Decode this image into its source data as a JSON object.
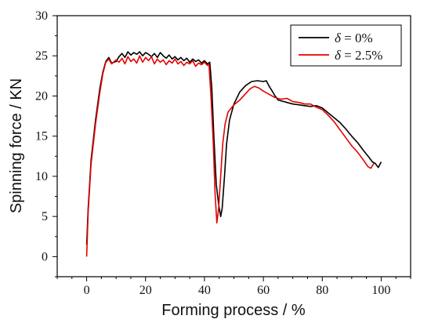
{
  "chart_data": {
    "type": "line",
    "xlabel": "Forming process / %",
    "ylabel": "Spinning force / KN",
    "xlim": [
      -10,
      110
    ],
    "ylim": [
      -2.5,
      30
    ],
    "xticks": [
      0,
      20,
      40,
      60,
      80,
      100
    ],
    "yticks": [
      0,
      5,
      10,
      15,
      20,
      25,
      30
    ],
    "legend_position": "top-right",
    "grid": false,
    "series": [
      {
        "name_symbol": "δ",
        "name_value": " = 0%",
        "color": "#000000",
        "x": [
          0,
          0.5,
          1.5,
          3,
          4.5,
          5.5,
          6.5,
          7.5,
          8.5,
          10,
          11,
          12,
          13,
          14,
          15,
          16,
          17,
          18,
          19,
          20,
          21,
          22,
          23,
          24,
          25,
          26,
          27,
          28,
          29,
          30,
          31,
          32,
          33,
          34,
          35,
          36,
          37,
          38,
          39,
          40,
          41,
          41.8,
          42.5,
          43.2,
          44,
          44.8,
          45.5,
          46,
          46.8,
          47.5,
          48.5,
          50,
          52,
          54,
          56,
          58,
          60,
          61,
          62,
          63,
          64,
          65,
          66,
          68,
          70,
          72,
          74,
          76,
          78,
          80,
          82,
          84,
          86,
          88,
          90,
          92,
          94,
          96,
          97,
          98,
          99,
          100
        ],
        "y": [
          1.5,
          6,
          12,
          17,
          21,
          23,
          24.3,
          24.8,
          24.1,
          24.3,
          24.9,
          25.3,
          24.8,
          25.5,
          25.1,
          25.4,
          25.2,
          25.5,
          25.0,
          25.4,
          25.2,
          24.9,
          25.3,
          24.8,
          25.4,
          25.0,
          24.7,
          25.1,
          24.6,
          24.9,
          24.5,
          24.8,
          24.4,
          24.7,
          24.2,
          24.6,
          24.3,
          24.5,
          24.1,
          24.4,
          24.0,
          24.2,
          21,
          15,
          9,
          6.5,
          5.0,
          6,
          10,
          14,
          17,
          19,
          20.5,
          21.3,
          21.8,
          21.9,
          21.8,
          21.9,
          21.2,
          20.6,
          20.0,
          19.5,
          19.4,
          19.2,
          19.0,
          18.9,
          18.8,
          18.7,
          18.8,
          18.5,
          17.9,
          17.3,
          16.7,
          15.9,
          15.0,
          14.2,
          13.2,
          12.3,
          11.8,
          11.6,
          11.1,
          11.8
        ]
      },
      {
        "name_symbol": "δ",
        "name_value": " = 2.5%",
        "color": "#e60000",
        "x": [
          0,
          0.5,
          1.5,
          3,
          4.5,
          5.5,
          6.5,
          7.5,
          8.5,
          10,
          11,
          12,
          13,
          14,
          15,
          16,
          17,
          18,
          19,
          20,
          21,
          22,
          23,
          24,
          25,
          26,
          27,
          28,
          29,
          30,
          31,
          32,
          33,
          34,
          35,
          36,
          37,
          38,
          39,
          40,
          41,
          41.5,
          42.2,
          43,
          43.6,
          44.2,
          44.8,
          45.5,
          46.2,
          47,
          48,
          50,
          52,
          54,
          55.5,
          57,
          58.5,
          60,
          62,
          64,
          66,
          68,
          70,
          72,
          74,
          76,
          78,
          80,
          82,
          84,
          86,
          88,
          90,
          92,
          94,
          95.5,
          96.5,
          97.5
        ],
        "y": [
          0,
          5.5,
          11.5,
          16.5,
          20.5,
          22.8,
          24.2,
          24.6,
          24.0,
          24.5,
          24.2,
          24.7,
          24.0,
          24.9,
          24.3,
          24.6,
          24.1,
          25.0,
          24.2,
          24.8,
          24.4,
          24.9,
          24.0,
          24.6,
          24.2,
          24.5,
          23.9,
          24.4,
          24.1,
          24.6,
          24.0,
          24.3,
          23.8,
          24.2,
          24.0,
          24.4,
          23.7,
          24.1,
          23.9,
          24.2,
          23.8,
          24.0,
          20,
          14,
          8,
          4.2,
          6,
          10,
          14,
          16.5,
          18,
          18.9,
          19.5,
          20.3,
          20.9,
          21.2,
          21.0,
          20.6,
          20.2,
          19.8,
          19.6,
          19.7,
          19.3,
          19.2,
          19.0,
          19.0,
          18.6,
          18.3,
          17.6,
          16.8,
          15.8,
          14.8,
          13.8,
          13.0,
          12.0,
          11.2,
          11.0,
          11.6
        ]
      }
    ]
  }
}
